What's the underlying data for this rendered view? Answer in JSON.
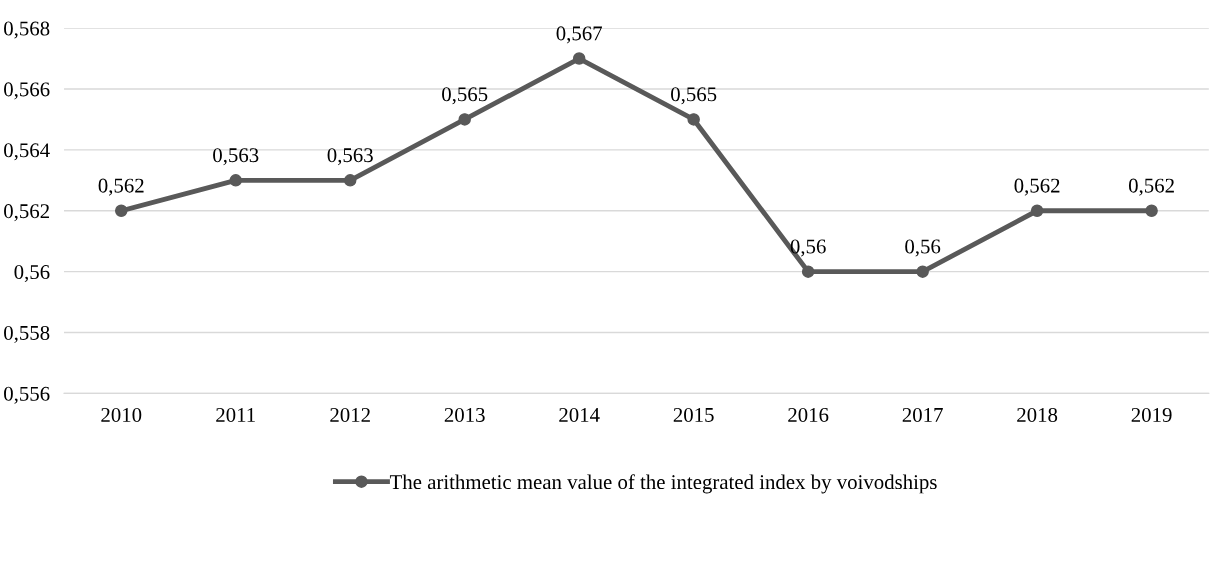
{
  "chart_data": {
    "type": "line",
    "categories": [
      "2010",
      "2011",
      "2012",
      "2013",
      "2014",
      "2015",
      "2016",
      "2017",
      "2018",
      "2019"
    ],
    "series": [
      {
        "name": "The arithmetic mean value of the integrated index by voivodships",
        "color": "#595959",
        "values": [
          0.562,
          0.563,
          0.563,
          0.565,
          0.567,
          0.565,
          0.56,
          0.56,
          0.562,
          0.562
        ],
        "value_labels": [
          "0,562",
          "0,563",
          "0,563",
          "0,565",
          "0,567",
          "0,565",
          "0,56",
          "0,56",
          "0,562",
          "0,562"
        ]
      }
    ],
    "ylim": [
      0.556,
      0.568
    ],
    "yticks": [
      {
        "value": 0.556,
        "label": "0,556"
      },
      {
        "value": 0.558,
        "label": "0,558"
      },
      {
        "value": 0.56,
        "label": "0,56"
      },
      {
        "value": 0.562,
        "label": "0,562"
      },
      {
        "value": 0.564,
        "label": "0,564"
      },
      {
        "value": 0.566,
        "label": "0,566"
      },
      {
        "value": 0.568,
        "label": "0,568"
      }
    ],
    "grid": "y",
    "legend": "bottom",
    "marker": "circle",
    "line_style": "solid"
  }
}
